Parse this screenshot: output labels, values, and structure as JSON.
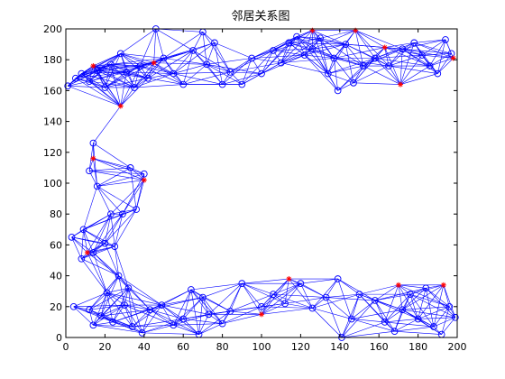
{
  "chart_data": {
    "type": "scatter",
    "title": "邻居关系图",
    "xlabel": "",
    "ylabel": "",
    "xlim": [
      0,
      200
    ],
    "ylim": [
      0,
      200
    ],
    "x_ticks": [
      0,
      20,
      40,
      60,
      80,
      100,
      120,
      140,
      160,
      180,
      200
    ],
    "y_ticks": [
      0,
      20,
      40,
      60,
      80,
      100,
      120,
      140,
      160,
      180,
      200
    ],
    "grid": false,
    "legend": "none",
    "colors": {
      "edge": "#0000ff",
      "anchor": "#ff0000",
      "axis": "#000000"
    },
    "neighbor_radius": 30,
    "series": [
      {
        "marker": "circle",
        "points": [
          [
            1,
            163
          ],
          [
            5,
            168
          ],
          [
            8,
            171
          ],
          [
            12,
            166
          ],
          [
            16,
            173
          ],
          [
            20,
            162
          ],
          [
            23,
            177
          ],
          [
            28,
            184
          ],
          [
            31,
            172
          ],
          [
            35,
            162
          ],
          [
            38,
            176
          ],
          [
            42,
            168
          ],
          [
            46,
            200
          ],
          [
            50,
            181
          ],
          [
            55,
            171
          ],
          [
            60,
            164
          ],
          [
            65,
            186
          ],
          [
            70,
            198
          ],
          [
            72,
            177
          ],
          [
            76,
            191
          ],
          [
            80,
            164
          ],
          [
            84,
            172
          ],
          [
            90,
            164
          ],
          [
            95,
            181
          ],
          [
            100,
            171
          ],
          [
            106,
            186
          ],
          [
            110,
            178
          ],
          [
            114,
            191
          ],
          [
            118,
            195
          ],
          [
            122,
            183
          ],
          [
            126,
            187
          ],
          [
            130,
            194
          ],
          [
            134,
            171
          ],
          [
            137,
            181
          ],
          [
            139,
            160
          ],
          [
            143,
            190
          ],
          [
            147,
            165
          ],
          [
            152,
            176
          ],
          [
            158,
            181
          ],
          [
            165,
            176
          ],
          [
            172,
            187
          ],
          [
            178,
            191
          ],
          [
            182,
            183
          ],
          [
            186,
            176
          ],
          [
            190,
            171
          ],
          [
            194,
            193
          ],
          [
            197,
            184
          ],
          [
            14,
            126
          ],
          [
            12,
            108
          ],
          [
            33,
            110
          ],
          [
            40,
            106
          ],
          [
            16,
            98
          ],
          [
            23,
            80
          ],
          [
            36,
            83
          ],
          [
            29,
            80
          ],
          [
            9,
            70
          ],
          [
            3,
            65
          ],
          [
            20,
            61
          ],
          [
            25,
            59
          ],
          [
            14,
            55
          ],
          [
            8,
            51
          ],
          [
            27,
            40
          ],
          [
            32,
            32
          ],
          [
            21,
            29
          ],
          [
            12,
            18
          ],
          [
            4,
            20
          ],
          [
            18,
            14
          ],
          [
            14,
            8
          ],
          [
            24,
            10
          ],
          [
            30,
            21
          ],
          [
            34,
            7
          ],
          [
            39,
            3
          ],
          [
            43,
            18
          ],
          [
            49,
            21
          ],
          [
            55,
            8
          ],
          [
            60,
            12
          ],
          [
            64,
            31
          ],
          [
            68,
            2
          ],
          [
            73,
            15
          ],
          [
            70,
            26
          ],
          [
            80,
            9
          ],
          [
            84,
            17
          ],
          [
            90,
            35
          ],
          [
            100,
            20
          ],
          [
            106,
            28
          ],
          [
            112,
            22
          ],
          [
            120,
            35
          ],
          [
            126,
            19
          ],
          [
            133,
            26
          ],
          [
            139,
            38
          ],
          [
            141,
            0
          ],
          [
            146,
            12
          ],
          [
            150,
            28
          ],
          [
            158,
            24
          ],
          [
            163,
            10
          ],
          [
            168,
            4
          ],
          [
            172,
            18
          ],
          [
            176,
            28
          ],
          [
            180,
            12
          ],
          [
            184,
            32
          ],
          [
            188,
            7
          ],
          [
            192,
            2
          ],
          [
            196,
            20
          ],
          [
            199,
            13
          ]
        ]
      },
      {
        "marker": "asterisk",
        "points": [
          [
            14,
            176
          ],
          [
            28,
            150
          ],
          [
            45,
            178
          ],
          [
            126,
            199
          ],
          [
            148,
            199
          ],
          [
            163,
            188
          ],
          [
            171,
            164
          ],
          [
            198,
            181
          ],
          [
            14,
            116
          ],
          [
            40,
            102
          ],
          [
            11,
            55
          ],
          [
            100,
            15
          ],
          [
            114,
            38
          ],
          [
            170,
            34
          ],
          [
            193,
            34
          ]
        ]
      }
    ]
  }
}
